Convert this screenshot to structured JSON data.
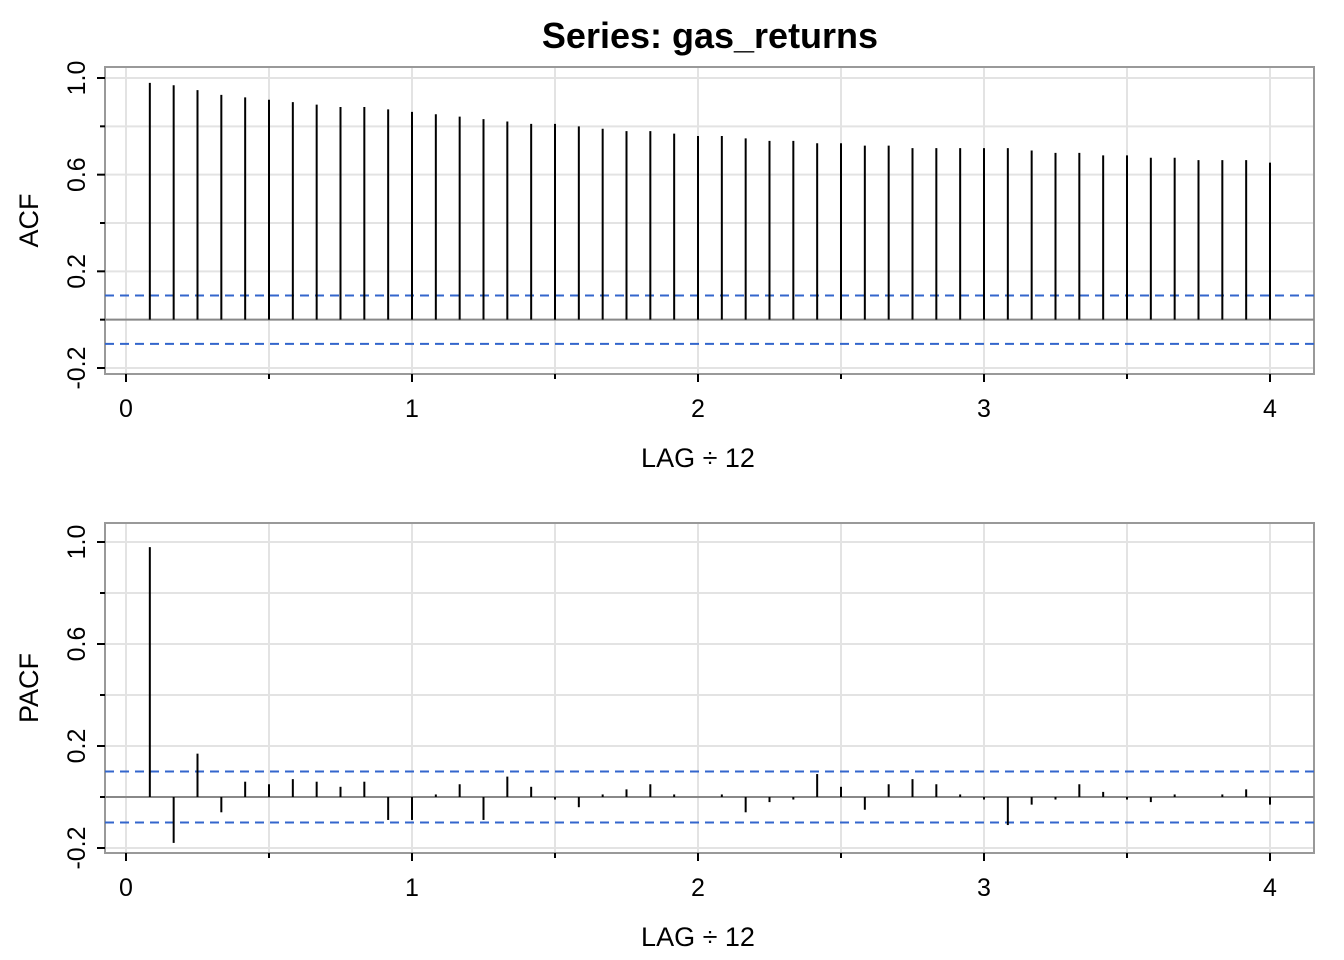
{
  "chart_data": [
    {
      "type": "bar",
      "panel": "acf",
      "title": "Series:  gas_returns",
      "xlabel": "LAG ÷ 12",
      "ylabel": "ACF",
      "xlim": [
        0,
        4
      ],
      "ylim": [
        -0.2,
        1.0
      ],
      "xticks": [
        0,
        1,
        2,
        3,
        4
      ],
      "xtick_labels": [
        "0",
        "1",
        "2",
        "3",
        "4"
      ],
      "yticks": [
        -0.2,
        0.2,
        0.6,
        1.0
      ],
      "ytick_labels": [
        "-0.2",
        "0.2",
        "0.6",
        "1.0"
      ],
      "grid": true,
      "confidence_bound": 0.1,
      "lag_step": 0.0833333,
      "values": [
        0.98,
        0.97,
        0.95,
        0.93,
        0.92,
        0.91,
        0.9,
        0.89,
        0.88,
        0.88,
        0.87,
        0.86,
        0.85,
        0.84,
        0.83,
        0.82,
        0.81,
        0.81,
        0.8,
        0.79,
        0.78,
        0.78,
        0.77,
        0.76,
        0.76,
        0.75,
        0.74,
        0.74,
        0.73,
        0.73,
        0.72,
        0.72,
        0.71,
        0.71,
        0.71,
        0.71,
        0.71,
        0.7,
        0.69,
        0.69,
        0.68,
        0.68,
        0.67,
        0.67,
        0.66,
        0.66,
        0.66,
        0.65
      ]
    },
    {
      "type": "bar",
      "panel": "pacf",
      "xlabel": "LAG ÷ 12",
      "ylabel": "PACF",
      "xlim": [
        0,
        4
      ],
      "ylim": [
        -0.2,
        1.0
      ],
      "xticks": [
        0,
        1,
        2,
        3,
        4
      ],
      "xtick_labels": [
        "0",
        "1",
        "2",
        "3",
        "4"
      ],
      "yticks": [
        -0.2,
        0.2,
        0.6,
        1.0
      ],
      "ytick_labels": [
        "-0.2",
        "0.2",
        "0.6",
        "1.0"
      ],
      "grid": true,
      "confidence_bound": 0.1,
      "lag_step": 0.0833333,
      "values": [
        0.98,
        -0.18,
        0.17,
        -0.06,
        0.06,
        0.05,
        0.07,
        0.06,
        0.04,
        0.06,
        -0.09,
        -0.09,
        0.01,
        0.05,
        -0.09,
        0.08,
        0.04,
        -0.01,
        -0.04,
        0.01,
        0.03,
        0.05,
        0.01,
        0.0,
        0.01,
        -0.06,
        -0.02,
        -0.01,
        0.09,
        0.04,
        -0.05,
        0.05,
        0.07,
        0.05,
        0.01,
        -0.01,
        -0.11,
        -0.03,
        -0.01,
        0.05,
        0.02,
        -0.01,
        -0.02,
        0.01,
        0.0,
        0.01,
        0.03,
        -0.03
      ]
    }
  ],
  "colors": {
    "spike": "#000000",
    "bound": "#3366cc",
    "grid": "#e3e3e3",
    "frame": "#999999",
    "zero": "#888888"
  }
}
